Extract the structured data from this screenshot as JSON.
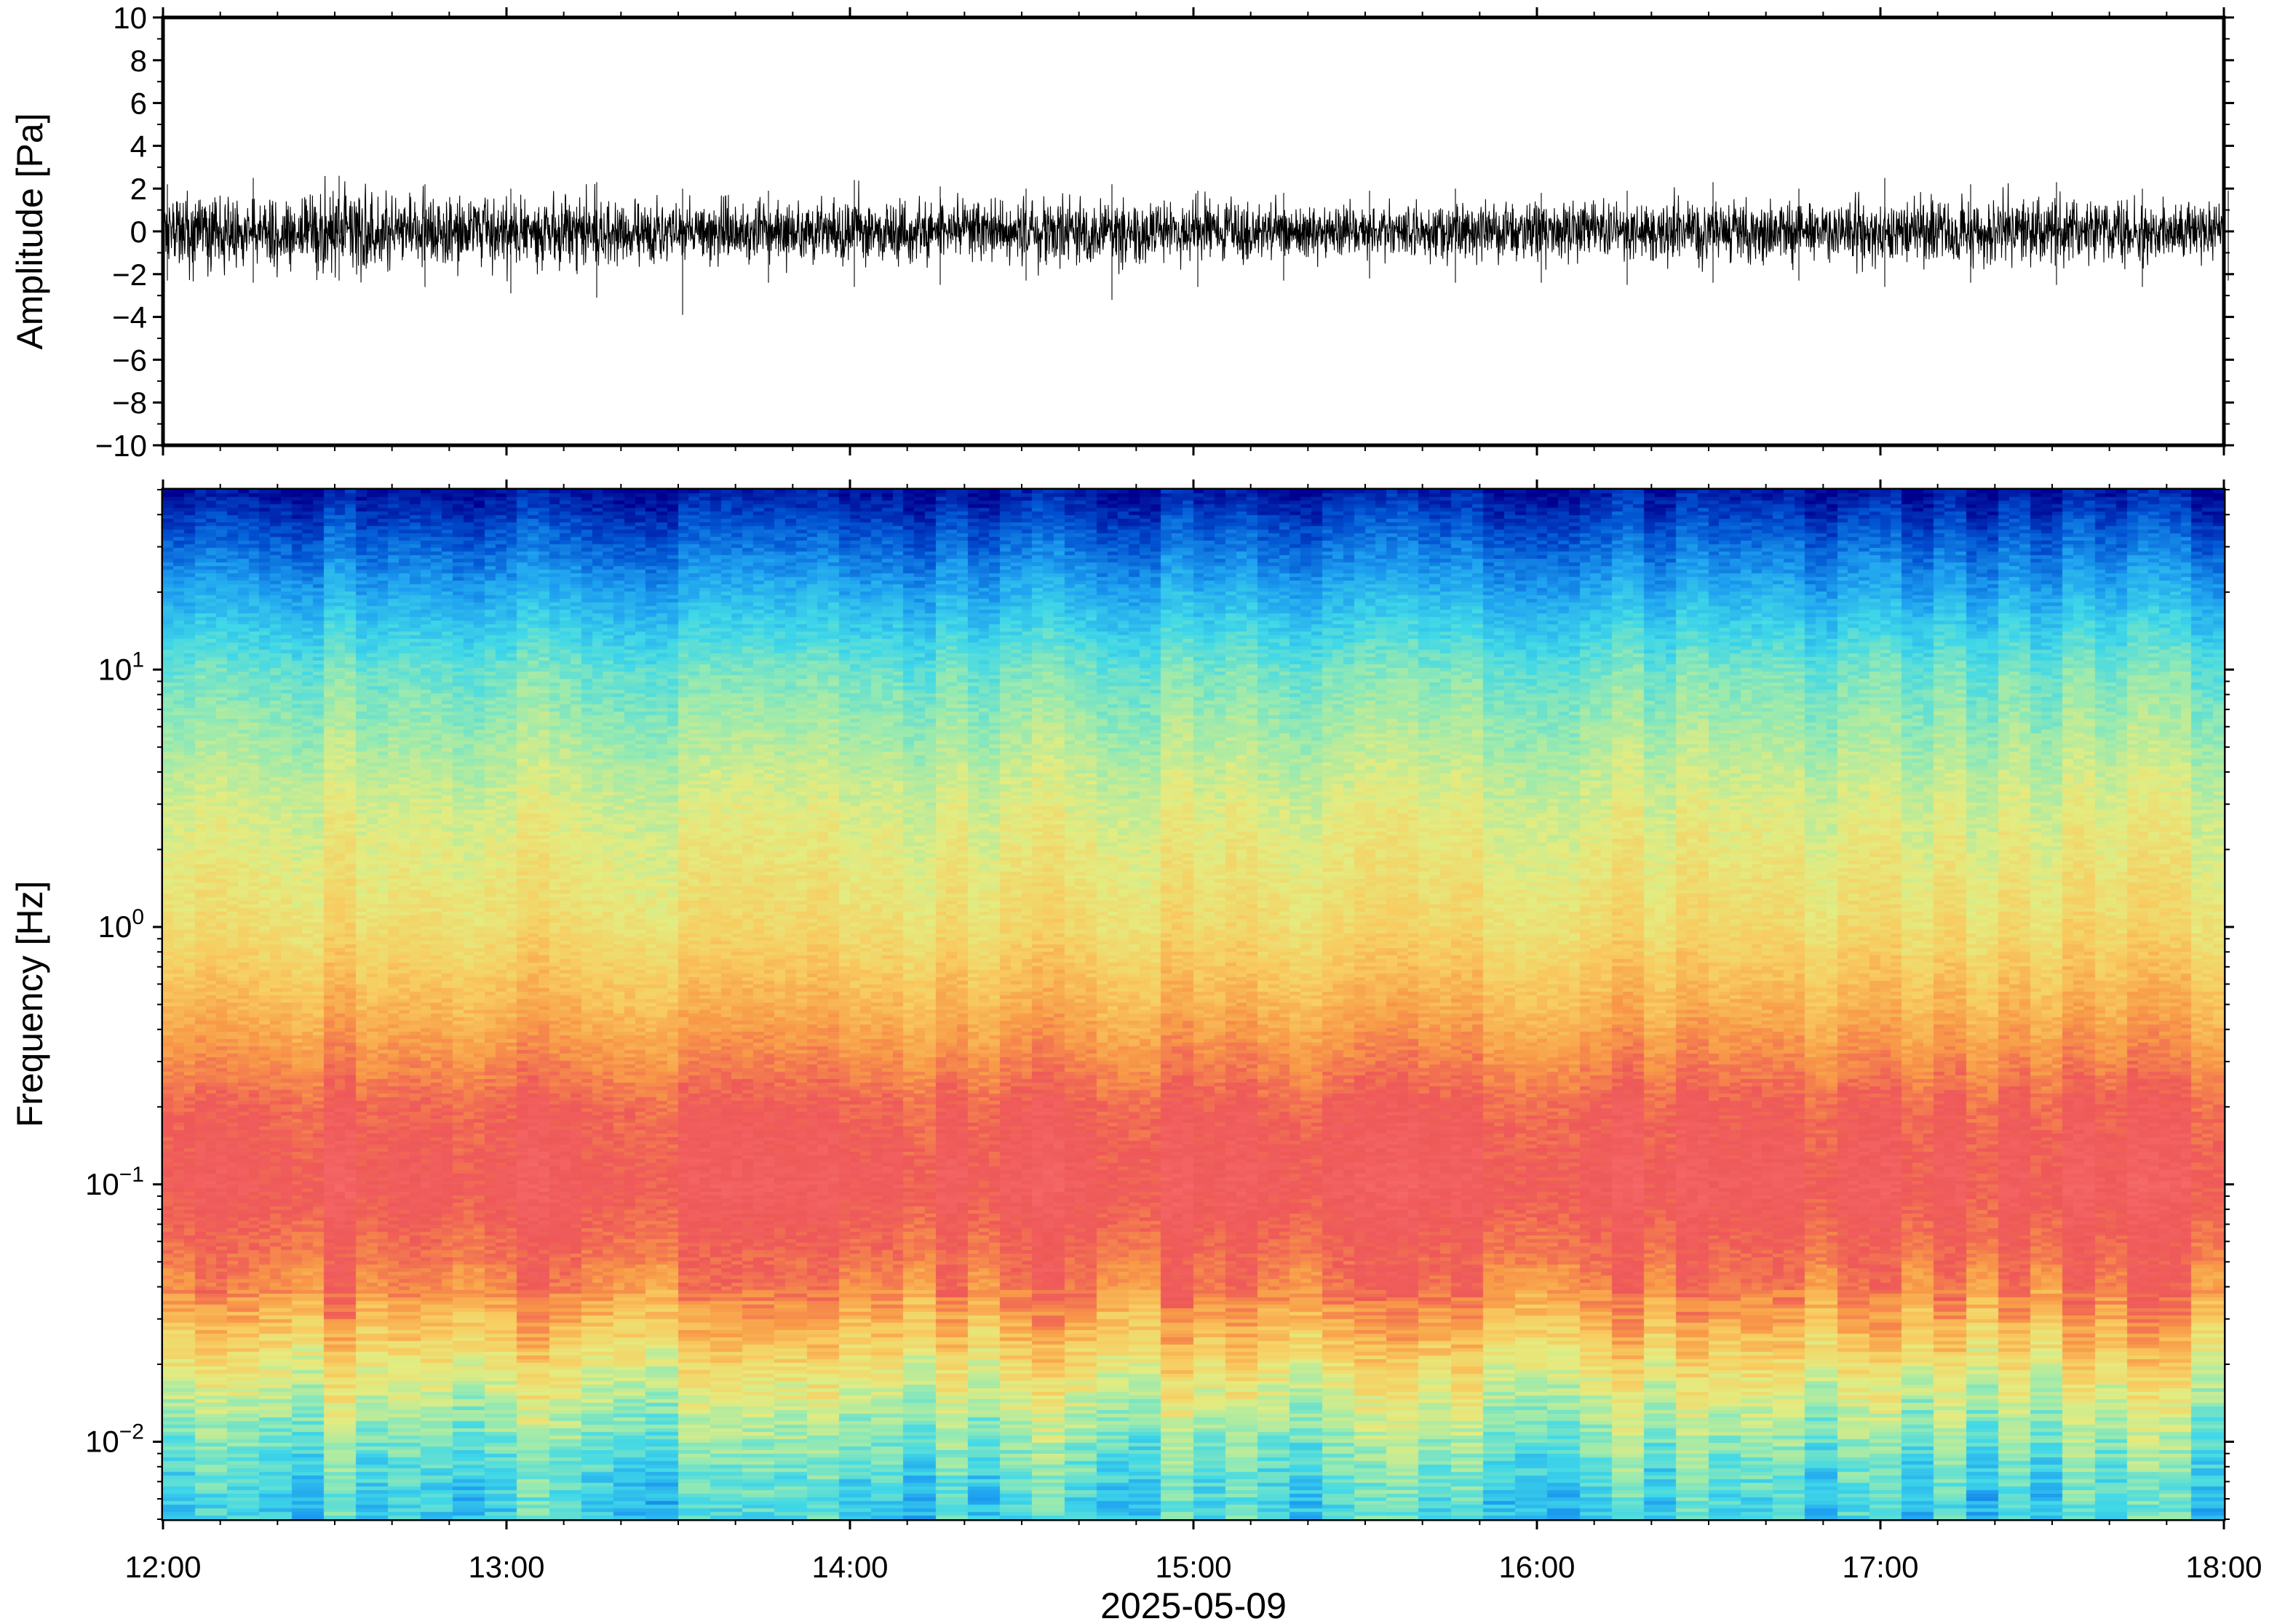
{
  "chart_data": [
    {
      "type": "line",
      "title": "",
      "ylabel": "Amplitude [Pa]",
      "xlabel": "",
      "ylim": [
        -10,
        10
      ],
      "yticks": [
        {
          "value": 10,
          "label": "10"
        },
        {
          "value": 8,
          "label": "8"
        },
        {
          "value": 6,
          "label": "6"
        },
        {
          "value": 4,
          "label": "4"
        },
        {
          "value": 2,
          "label": "2"
        },
        {
          "value": 0,
          "label": "0"
        },
        {
          "value": -2,
          "label": "−2"
        },
        {
          "value": -4,
          "label": "−4"
        },
        {
          "value": -6,
          "label": "−6"
        },
        {
          "value": -8,
          "label": "−8"
        },
        {
          "value": -10,
          "label": "−10"
        }
      ],
      "xlim": [
        "2025-05-09 12:00",
        "2025-05-09 18:00"
      ],
      "series": [
        {
          "x": [
            "12:00",
            "12:15",
            "12:30",
            "12:45",
            "13:00",
            "13:15",
            "13:30",
            "13:45",
            "14:00",
            "14:15",
            "14:30",
            "14:45",
            "15:00",
            "15:15",
            "15:30",
            "15:45",
            "16:00",
            "16:15",
            "16:30",
            "16:45",
            "17:00",
            "17:15",
            "17:30",
            "17:45",
            "18:00"
          ],
          "typical_peak": [
            1.7,
            1.9,
            2.2,
            1.8,
            1.8,
            1.9,
            1.7,
            1.6,
            1.7,
            1.8,
            1.6,
            1.8,
            1.6,
            1.5,
            1.5,
            1.6,
            1.5,
            1.6,
            1.7,
            1.6,
            1.7,
            1.8,
            1.8,
            1.6,
            1.6
          ],
          "max": [
            2.2,
            2.5,
            2.6,
            2.2,
            2.0,
            2.3,
            2.0,
            1.9,
            2.4,
            2.1,
            2.0,
            2.2,
            1.9,
            1.8,
            1.9,
            2.0,
            1.8,
            1.9,
            2.3,
            2.0,
            2.5,
            2.2,
            2.3,
            2.0,
            1.9
          ],
          "min": [
            -2.3,
            -2.4,
            -2.3,
            -2.6,
            -2.9,
            -3.1,
            -3.9,
            -2.4,
            -2.6,
            -2.5,
            -2.3,
            -3.2,
            -2.6,
            -2.3,
            -2.2,
            -2.4,
            -2.4,
            -2.5,
            -2.4,
            -2.3,
            -2.6,
            -2.4,
            -2.5,
            -2.6,
            -2.3
          ]
        }
      ]
    },
    {
      "type": "heatmap",
      "title": "",
      "ylabel": "Frequency [Hz]",
      "xlabel": "2025-05-09",
      "y_scale": "log",
      "ylim": [
        0.005,
        50
      ],
      "yticks": [
        {
          "value": 10,
          "base": "10",
          "exp": "1"
        },
        {
          "value": 1,
          "base": "10",
          "exp": "0"
        },
        {
          "value": 0.1,
          "base": "10",
          "exp": "−1"
        },
        {
          "value": 0.01,
          "base": "10",
          "exp": "−2"
        }
      ],
      "xlim": [
        "12:00",
        "18:00"
      ],
      "xticks": [
        "12:00",
        "13:00",
        "14:00",
        "15:00",
        "16:00",
        "17:00",
        "18:00"
      ],
      "colormap": [
        "#00008f",
        "#0050d0",
        "#1ea0f0",
        "#40d8e8",
        "#98eab0",
        "#e4ec80",
        "#f8cc60",
        "#f89a48",
        "#ee5858",
        "#f86a6a"
      ],
      "frequency_bands": [
        {
          "freq_hz": 0.006,
          "level": 0.33
        },
        {
          "freq_hz": 0.01,
          "level": 0.42
        },
        {
          "freq_hz": 0.02,
          "level": 0.6
        },
        {
          "freq_hz": 0.04,
          "level": 0.82
        },
        {
          "freq_hz": 0.1,
          "level": 0.92
        },
        {
          "freq_hz": 0.2,
          "level": 0.88
        },
        {
          "freq_hz": 0.5,
          "level": 0.72
        },
        {
          "freq_hz": 1,
          "level": 0.62
        },
        {
          "freq_hz": 3,
          "level": 0.54
        },
        {
          "freq_hz": 10,
          "level": 0.4
        },
        {
          "freq_hz": 20,
          "level": 0.25
        },
        {
          "freq_hz": 35,
          "level": 0.12
        },
        {
          "freq_hz": 50,
          "level": 0.03
        }
      ]
    }
  ]
}
